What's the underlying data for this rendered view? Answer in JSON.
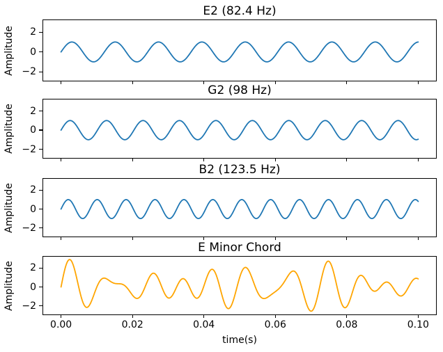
{
  "figure": {
    "background": "#ffffff",
    "text_color": "#000000"
  },
  "chart_data": {
    "type": "line",
    "layout": "4 vertically stacked subplots with shared x-axis and shared y-axis, no grid, no legend",
    "x": {
      "label": "time(s)",
      "data_range": [
        0,
        0.1
      ],
      "xlim": [
        -0.005,
        0.105
      ],
      "ticks": [
        {
          "value": 0.0,
          "label": "0.00"
        },
        {
          "value": 0.02,
          "label": "0.02"
        },
        {
          "value": 0.04,
          "label": "0.04"
        },
        {
          "value": 0.06,
          "label": "0.06"
        },
        {
          "value": 0.08,
          "label": "0.08"
        },
        {
          "value": 0.1,
          "label": "0.10"
        }
      ]
    },
    "y": {
      "label": "Amplitude",
      "ylim": [
        -2.9,
        3.2
      ],
      "ticks": [
        {
          "value": 2,
          "label": "2"
        },
        {
          "value": 0,
          "label": "0"
        },
        {
          "value": -2,
          "label": "−2"
        }
      ]
    },
    "sample_count": 800,
    "line_width": 1.8,
    "subplots": [
      {
        "id": "e2",
        "title": "E2 (82.4 Hz)",
        "color": "#1f77b4",
        "waveform": "sine",
        "components": [
          {
            "frequency_hz": 82.4,
            "amplitude": 1
          }
        ]
      },
      {
        "id": "g2",
        "title": "G2 (98 Hz)",
        "color": "#1f77b4",
        "waveform": "sine",
        "components": [
          {
            "frequency_hz": 98,
            "amplitude": 1
          }
        ]
      },
      {
        "id": "b2",
        "title": "B2 (123.5 Hz)",
        "color": "#1f77b4",
        "waveform": "sine",
        "components": [
          {
            "frequency_hz": 123.5,
            "amplitude": 1
          }
        ]
      },
      {
        "id": "chord",
        "title": "E Minor Chord",
        "color": "#ffa500",
        "waveform": "sum-of-sines",
        "components": [
          {
            "frequency_hz": 82.4,
            "amplitude": 1
          },
          {
            "frequency_hz": 98,
            "amplitude": 1
          },
          {
            "frequency_hz": 123.5,
            "amplitude": 1
          }
        ]
      }
    ]
  }
}
